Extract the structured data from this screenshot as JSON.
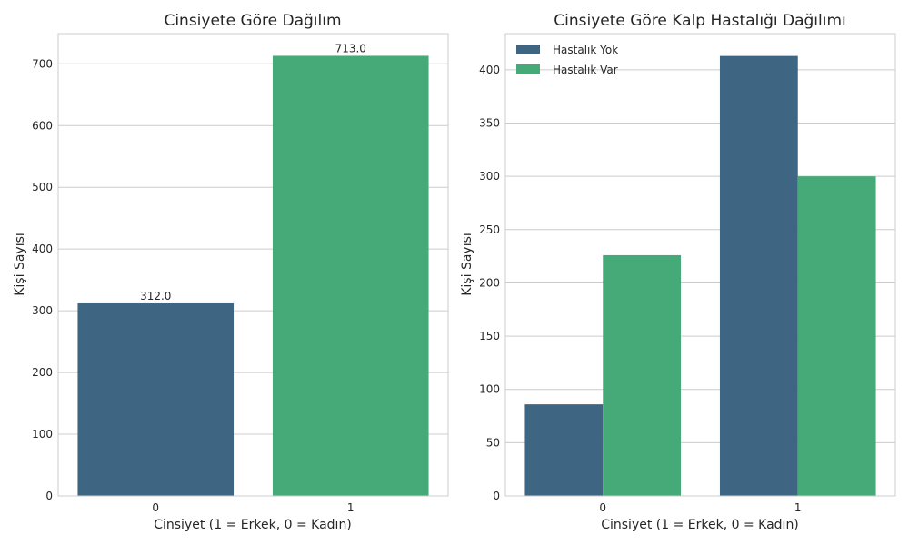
{
  "colors": {
    "series_a": "#3e6683",
    "series_b": "#46a978"
  },
  "chart_data": [
    {
      "type": "bar",
      "title": "Cinsiyete Göre Dağılım",
      "xlabel": "Cinsiyet (1 = Erkek, 0 = Kadın)",
      "ylabel": "Kişi Sayısı",
      "categories": [
        "0",
        "1"
      ],
      "values": [
        312,
        713
      ],
      "data_labels": [
        "312.0",
        "713.0"
      ],
      "yticks": [
        0,
        100,
        200,
        300,
        400,
        500,
        600,
        700
      ],
      "ylim": [
        0,
        749
      ],
      "grid": true
    },
    {
      "type": "bar",
      "title": "Cinsiyete Göre Kalp Hastalığı Dağılımı",
      "xlabel": "Cinsiyet (1 = Erkek, 0 = Kadın)",
      "ylabel": "Kişi Sayısı",
      "categories": [
        "0",
        "1"
      ],
      "series": [
        {
          "name": "Hastalık Yok",
          "values": [
            86,
            413
          ]
        },
        {
          "name": "Hastalık Var",
          "values": [
            226,
            300
          ]
        }
      ],
      "yticks": [
        0,
        50,
        100,
        150,
        200,
        250,
        300,
        350,
        400
      ],
      "ylim": [
        0,
        434
      ],
      "legend": "top-left",
      "grid": true
    }
  ]
}
